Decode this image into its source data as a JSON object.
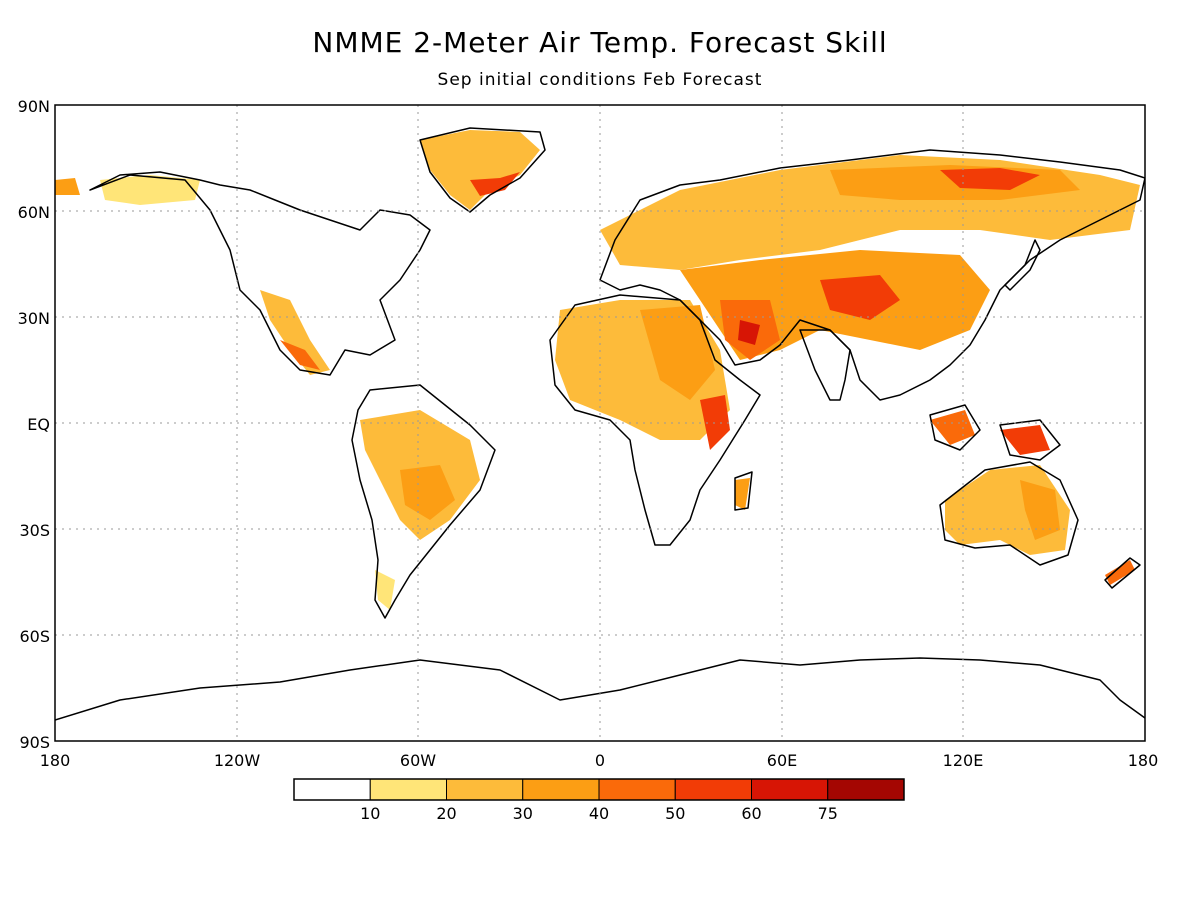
{
  "title": "NMME 2-Meter Air Temp. Forecast Skill",
  "subtitle": "Sep initial conditions  Feb Forecast",
  "map": {
    "lat_labels": [
      "90N",
      "60N",
      "30N",
      "EQ",
      "30S",
      "60S",
      "90S"
    ],
    "lon_labels": [
      "180",
      "120W",
      "60W",
      "0",
      "60E",
      "120E",
      "180"
    ],
    "grid": "dotted",
    "land_outline_color": "#000000"
  },
  "colorbar": {
    "bins": [
      {
        "color": "#ffffff"
      },
      {
        "color": "#ffe578"
      },
      {
        "color": "#fdbb3a"
      },
      {
        "color": "#fc9e14"
      },
      {
        "color": "#fa6a0a"
      },
      {
        "color": "#f23c06"
      },
      {
        "color": "#d71505"
      },
      {
        "color": "#a40602"
      }
    ],
    "labels": [
      "10",
      "20",
      "30",
      "40",
      "50",
      "60",
      "75"
    ]
  }
}
